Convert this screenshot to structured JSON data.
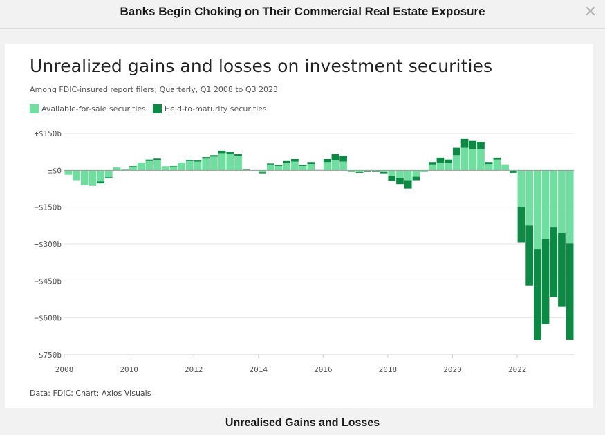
{
  "window": {
    "title": "Banks Begin Choking on Their Commercial Real Estate Exposure",
    "close_icon": "close-icon"
  },
  "caption": "Unrealised Gains and Losses",
  "source": "Data: FDIC; Chart: Axios Visuals",
  "colors": {
    "afs": "#6fdf9f",
    "htm": "#0b8a43",
    "grid": "#e4e4e4"
  },
  "chart_data": {
    "type": "bar",
    "stacked": true,
    "title": "Unrealized gains and losses on investment securities",
    "subtitle": "Among FDIC-insured report filers; Quarterly, Q1 2008 to Q3 2023",
    "xlabel": "",
    "ylabel": "",
    "ylim": [
      -750,
      150
    ],
    "yticks": [
      {
        "value": 150,
        "label": "+$150b"
      },
      {
        "value": 0,
        "label": "±$0"
      },
      {
        "value": -150,
        "label": "−$150b"
      },
      {
        "value": -300,
        "label": "−$300b"
      },
      {
        "value": -450,
        "label": "−$450b"
      },
      {
        "value": -600,
        "label": "−$600b"
      },
      {
        "value": -750,
        "label": "−$750b"
      }
    ],
    "xticks": [
      "2008",
      "2010",
      "2012",
      "2014",
      "2016",
      "2018",
      "2020",
      "2022"
    ],
    "grid": true,
    "legend_position": "top-left",
    "categories": [
      "Q1 2008",
      "Q2 2008",
      "Q3 2008",
      "Q4 2008",
      "Q1 2009",
      "Q2 2009",
      "Q3 2009",
      "Q4 2009",
      "Q1 2010",
      "Q2 2010",
      "Q3 2010",
      "Q4 2010",
      "Q1 2011",
      "Q2 2011",
      "Q3 2011",
      "Q4 2011",
      "Q1 2012",
      "Q2 2012",
      "Q3 2012",
      "Q4 2012",
      "Q1 2013",
      "Q2 2013",
      "Q3 2013",
      "Q4 2013",
      "Q1 2014",
      "Q2 2014",
      "Q3 2014",
      "Q4 2014",
      "Q1 2015",
      "Q2 2015",
      "Q3 2015",
      "Q4 2015",
      "Q1 2016",
      "Q2 2016",
      "Q3 2016",
      "Q4 2016",
      "Q1 2017",
      "Q2 2017",
      "Q3 2017",
      "Q4 2017",
      "Q1 2018",
      "Q2 2018",
      "Q3 2018",
      "Q4 2018",
      "Q1 2019",
      "Q2 2019",
      "Q3 2019",
      "Q4 2019",
      "Q1 2020",
      "Q2 2020",
      "Q3 2020",
      "Q4 2020",
      "Q1 2021",
      "Q2 2021",
      "Q3 2021",
      "Q4 2021",
      "Q1 2022",
      "Q2 2022",
      "Q3 2022",
      "Q4 2022",
      "Q1 2023",
      "Q2 2023",
      "Q3 2023"
    ],
    "series": [
      {
        "name": "Available-for-sale securities",
        "values": [
          -18,
          -40,
          -60,
          -58,
          -45,
          -28,
          12,
          4,
          16,
          30,
          38,
          42,
          14,
          16,
          30,
          38,
          36,
          48,
          56,
          70,
          66,
          58,
          2,
          1,
          -8,
          24,
          18,
          30,
          36,
          18,
          26,
          2,
          34,
          40,
          36,
          -4,
          -6,
          -2,
          -2,
          -6,
          -22,
          -30,
          -40,
          -26,
          -6,
          24,
          32,
          30,
          62,
          92,
          88,
          86,
          26,
          44,
          22,
          -2,
          -150,
          -225,
          -320,
          -280,
          -230,
          -255,
          -298
        ],
        "color": "#6fdf9f"
      },
      {
        "name": "Held-to-maturity securities",
        "values": [
          0,
          0,
          0,
          -4,
          -8,
          -4,
          0,
          0,
          2,
          2,
          6,
          6,
          2,
          2,
          2,
          4,
          4,
          6,
          6,
          10,
          8,
          8,
          1,
          0,
          -4,
          4,
          4,
          8,
          10,
          4,
          8,
          0,
          12,
          26,
          24,
          -2,
          -4,
          -2,
          -2,
          -6,
          -20,
          -26,
          -34,
          -14,
          0,
          10,
          20,
          14,
          30,
          36,
          32,
          30,
          8,
          8,
          2,
          -8,
          -143,
          -243,
          -370,
          -345,
          -285,
          -300,
          -390
        ],
        "color": "#0b8a43"
      }
    ]
  }
}
